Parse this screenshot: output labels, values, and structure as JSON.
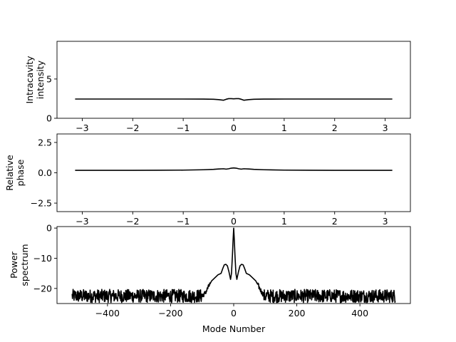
{
  "chart_data": [
    {
      "type": "line",
      "ylabel": [
        "Intracavity",
        "intensity"
      ],
      "xlabel": "",
      "xlim": [
        -3.5,
        3.5
      ],
      "ylim": [
        0,
        9.8
      ],
      "xticks": [
        -3,
        -2,
        -1,
        0,
        1,
        2,
        3
      ],
      "xtick_labels": [
        "−3",
        "−2",
        "−1",
        "0",
        "1",
        "2",
        "3"
      ],
      "yticks": [
        0,
        5
      ],
      "ytick_labels": [
        "0",
        "5"
      ],
      "grid": false,
      "series": [
        {
          "color": "#000000",
          "x": [
            -3.1416,
            -2.5,
            -2.0,
            -1.5,
            -1.0,
            -0.6,
            -0.4,
            -0.3,
            -0.2,
            -0.15,
            -0.1,
            -0.05,
            0.0,
            0.05,
            0.1,
            0.15,
            0.2,
            0.3,
            0.4,
            0.6,
            1.0,
            1.5,
            2.0,
            2.5,
            3.1416
          ],
          "y": [
            2.45,
            2.45,
            2.45,
            2.45,
            2.45,
            2.44,
            2.42,
            2.38,
            2.3,
            2.42,
            2.5,
            2.5,
            2.48,
            2.5,
            2.5,
            2.42,
            2.3,
            2.38,
            2.42,
            2.44,
            2.45,
            2.45,
            2.45,
            2.45,
            2.45
          ]
        }
      ]
    },
    {
      "type": "line",
      "ylabel": [
        "Relative",
        "phase"
      ],
      "xlabel": "",
      "xlim": [
        -3.5,
        3.5
      ],
      "ylim": [
        -3.2,
        3.2
      ],
      "xticks": [
        -3,
        -2,
        -1,
        0,
        1,
        2,
        3
      ],
      "xtick_labels": [
        "−3",
        "−2",
        "−1",
        "0",
        "1",
        "2",
        "3"
      ],
      "yticks": [
        -2.5,
        0.0,
        2.5
      ],
      "ytick_labels": [
        "−2.5",
        "0.0",
        "2.5"
      ],
      "grid": false,
      "series": [
        {
          "color": "#000000",
          "x": [
            -3.1416,
            -2.5,
            -2.0,
            -1.5,
            -1.0,
            -0.6,
            -0.4,
            -0.3,
            -0.2,
            -0.15,
            -0.1,
            -0.05,
            0.0,
            0.05,
            0.1,
            0.15,
            0.2,
            0.3,
            0.4,
            0.6,
            1.0,
            1.5,
            2.0,
            2.5,
            3.1416
          ],
          "y": [
            0.2,
            0.2,
            0.2,
            0.21,
            0.22,
            0.25,
            0.28,
            0.31,
            0.33,
            0.3,
            0.33,
            0.38,
            0.4,
            0.38,
            0.33,
            0.3,
            0.33,
            0.31,
            0.28,
            0.25,
            0.22,
            0.21,
            0.2,
            0.2,
            0.2
          ]
        }
      ]
    },
    {
      "type": "line",
      "ylabel": [
        "Power",
        "spectrum"
      ],
      "xlabel": "Mode Number",
      "xlim": [
        -560,
        560
      ],
      "ylim": [
        -25,
        0.5
      ],
      "xticks": [
        -400,
        -200,
        0,
        200,
        400
      ],
      "xtick_labels": [
        "−400",
        "−200",
        "0",
        "200",
        "400"
      ],
      "yticks": [
        -20,
        -10,
        0
      ],
      "ytick_labels": [
        "−20",
        "−10",
        "0"
      ],
      "grid": false,
      "series": [
        {
          "color": "#000000",
          "x_range": [
            -512,
            512
          ],
          "noise_floor": -22.5,
          "noise_amplitude": 2.2,
          "envelope": [
            [
              -512,
              -22.5
            ],
            [
              -100,
              -22.5
            ],
            [
              -90,
              -21.5
            ],
            [
              -80,
              -19.5
            ],
            [
              -70,
              -17.5
            ],
            [
              -60,
              -16.5
            ],
            [
              -50,
              -15.5
            ],
            [
              -40,
              -15.0
            ],
            [
              -35,
              -13.5
            ],
            [
              -30,
              -12.2
            ],
            [
              -25,
              -12.0
            ],
            [
              -20,
              -12.5
            ],
            [
              -15,
              -14.5
            ],
            [
              -10,
              -17.0
            ],
            [
              -7,
              -15.0
            ],
            [
              -4,
              -9.0
            ],
            [
              -2,
              -4.0
            ],
            [
              0,
              0.0
            ],
            [
              2,
              -4.0
            ],
            [
              4,
              -9.0
            ],
            [
              7,
              -15.0
            ],
            [
              10,
              -17.0
            ],
            [
              15,
              -14.5
            ],
            [
              20,
              -12.5
            ],
            [
              25,
              -12.0
            ],
            [
              30,
              -12.2
            ],
            [
              35,
              -13.5
            ],
            [
              40,
              -15.0
            ],
            [
              50,
              -15.5
            ],
            [
              60,
              -16.5
            ],
            [
              70,
              -17.5
            ],
            [
              80,
              -19.5
            ],
            [
              90,
              -21.5
            ],
            [
              100,
              -22.5
            ],
            [
              512,
              -22.5
            ]
          ]
        }
      ]
    }
  ]
}
